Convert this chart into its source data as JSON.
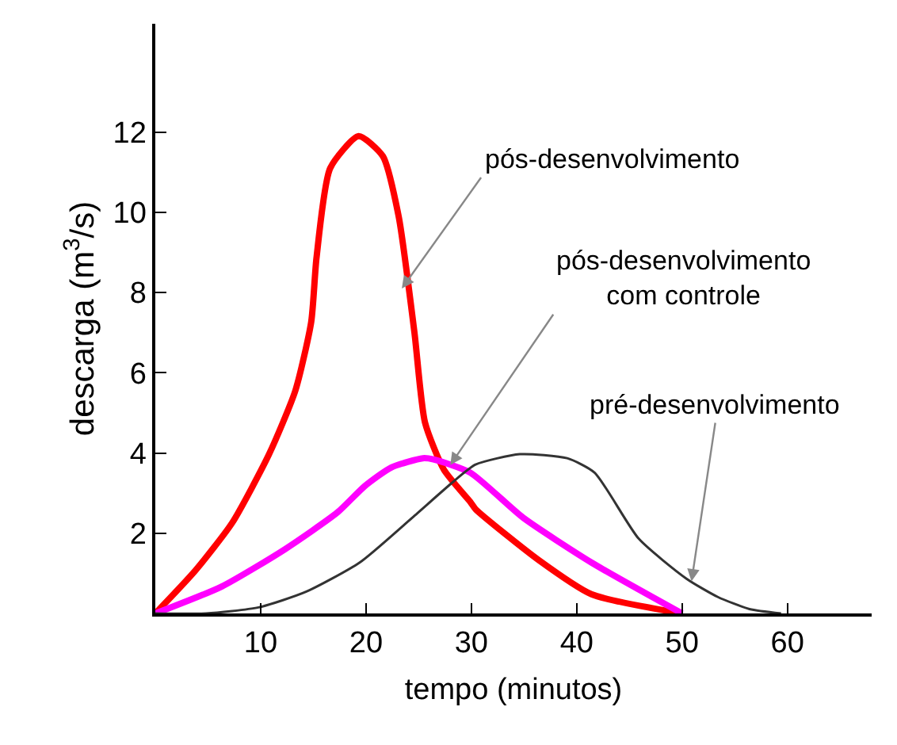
{
  "chart_data": {
    "type": "line",
    "xlabel": "tempo (minutos)",
    "ylabel": "descarga (m$^{3}$/s)",
    "xlim": [
      0,
      68
    ],
    "ylim": [
      0,
      14.7
    ],
    "xticks": [
      10,
      20,
      30,
      40,
      50,
      60
    ],
    "yticks": [
      2,
      4,
      6,
      8,
      10,
      12
    ],
    "marker": "none",
    "line_style": "solid",
    "series": [
      {
        "color": "#ff0000",
        "x": [
          0,
          3.8,
          7.3,
          10.8,
          13.3,
          14.8,
          15.3,
          16.6,
          19.3,
          21.6,
          23.1,
          24.6,
          25.6,
          27.4,
          29.9,
          30.4,
          36.4,
          41.4,
          50
        ],
        "values": [
          0,
          1.07,
          2.26,
          3.97,
          5.56,
          7.27,
          8.86,
          11.1,
          11.9,
          11.4,
          9.9,
          7.0,
          4.76,
          3.58,
          2.78,
          2.6,
          1.33,
          0.48,
          0
        ]
      },
      {
        "color": "#ff00ff",
        "x": [
          0,
          6.3,
          12.3,
          17.3,
          19.9,
          22.4,
          25.4,
          26.4,
          29.9,
          34.9,
          41.4,
          50
        ],
        "values": [
          0,
          0.67,
          1.6,
          2.52,
          3.18,
          3.64,
          3.87,
          3.84,
          3.51,
          2.39,
          1.27,
          0
        ]
      },
      {
        "color": "#333333",
        "x": [
          0,
          4.8,
          9.8,
          14.3,
          19.4,
          24.4,
          28.4,
          30.4,
          34.6,
          39.1,
          41.7,
          45.9,
          50.4,
          53.4,
          56.4,
          59.4
        ],
        "values": [
          0,
          0,
          0.15,
          0.54,
          1.27,
          2.39,
          3.31,
          3.71,
          3.97,
          3.87,
          3.51,
          1.86,
          0.87,
          0.41,
          0.11,
          0
        ]
      }
    ],
    "annotations": [
      {
        "text": "pós-desenvolvimento",
        "x": 23.4,
        "y": 8.1
      },
      {
        "text": "pós-desenvolvimento\ncom controle",
        "x": 28,
        "y": 3.7
      },
      {
        "text": "pré-desenvolvimento",
        "x": 50.9,
        "y": 0.8
      }
    ]
  }
}
